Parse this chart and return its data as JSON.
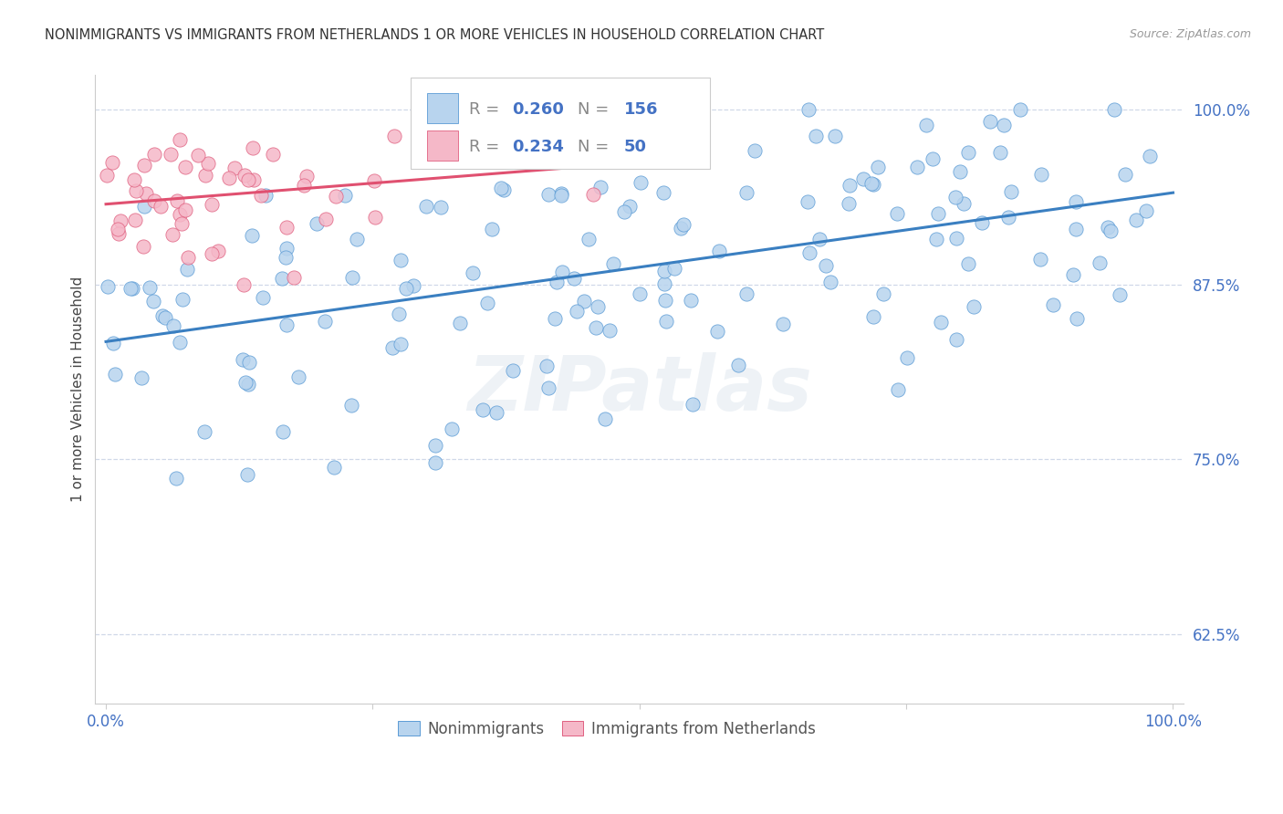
{
  "title": "NONIMMIGRANTS VS IMMIGRANTS FROM NETHERLANDS 1 OR MORE VEHICLES IN HOUSEHOLD CORRELATION CHART",
  "source": "Source: ZipAtlas.com",
  "ylabel": "1 or more Vehicles in Household",
  "ytick_vals": [
    0.625,
    0.75,
    0.875,
    1.0
  ],
  "ytick_labels": [
    "62.5%",
    "75.0%",
    "87.5%",
    "100.0%"
  ],
  "blue_color": "#b8d4ee",
  "pink_color": "#f5b8c8",
  "blue_edge_color": "#5b9bd5",
  "pink_edge_color": "#e06080",
  "blue_line_color": "#3a7fc1",
  "pink_line_color": "#e05070",
  "label_color": "#4472c4",
  "watermark": "ZIPatlas",
  "background_color": "#ffffff",
  "grid_color": "#d0d8e8",
  "blue_R": "0.260",
  "blue_N": "156",
  "pink_R": "0.234",
  "pink_N": "50",
  "blue_label": "Nonimmigrants",
  "pink_label": "Immigrants from Netherlands"
}
